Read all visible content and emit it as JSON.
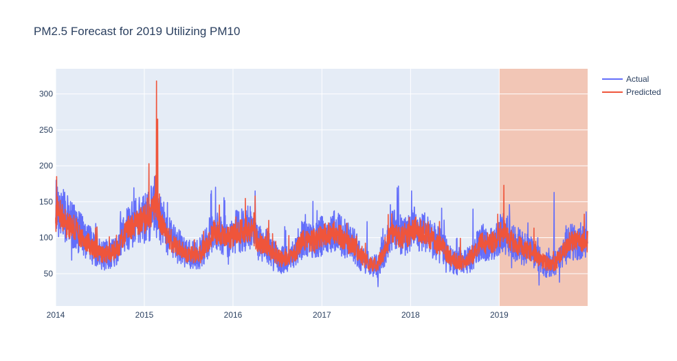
{
  "chart_data": {
    "type": "line",
    "title": "PM2.5 Forecast for 2019 Utilizing PM10",
    "xlabel": "",
    "ylabel": "",
    "x_range": [
      "2014-01-01",
      "2019-12-31"
    ],
    "ylim": [
      5,
      335
    ],
    "x_ticks": [
      "2014",
      "2015",
      "2016",
      "2017",
      "2018",
      "2019"
    ],
    "y_ticks": [
      50,
      100,
      150,
      200,
      250,
      300
    ],
    "grid": true,
    "legend_position": "top-right",
    "forecast_region": {
      "start": "2019-01-01",
      "end": "2019-12-31",
      "color": "#f2c6b6"
    },
    "x_monthly": [
      "2014-01",
      "2014-02",
      "2014-03",
      "2014-04",
      "2014-05",
      "2014-06",
      "2014-07",
      "2014-08",
      "2014-09",
      "2014-10",
      "2014-11",
      "2014-12",
      "2015-01",
      "2015-02",
      "2015-03",
      "2015-04",
      "2015-05",
      "2015-06",
      "2015-07",
      "2015-08",
      "2015-09",
      "2015-10",
      "2015-11",
      "2015-12",
      "2016-01",
      "2016-02",
      "2016-03",
      "2016-04",
      "2016-05",
      "2016-06",
      "2016-07",
      "2016-08",
      "2016-09",
      "2016-10",
      "2016-11",
      "2016-12",
      "2017-01",
      "2017-02",
      "2017-03",
      "2017-04",
      "2017-05",
      "2017-06",
      "2017-07",
      "2017-08",
      "2017-09",
      "2017-10",
      "2017-11",
      "2017-12",
      "2018-01",
      "2018-02",
      "2018-03",
      "2018-04",
      "2018-05",
      "2018-06",
      "2018-07",
      "2018-08",
      "2018-09",
      "2018-10",
      "2018-11",
      "2018-12",
      "2019-01",
      "2019-02",
      "2019-03",
      "2019-04",
      "2019-05",
      "2019-06",
      "2019-07",
      "2019-08",
      "2019-09",
      "2019-10",
      "2019-11",
      "2019-12"
    ],
    "series": [
      {
        "name": "Actual",
        "color": "#636efa",
        "values": [
          140,
          125,
          118,
          105,
          95,
          80,
          75,
          78,
          85,
          110,
          120,
          125,
          130,
          140,
          120,
          100,
          90,
          80,
          75,
          78,
          90,
          110,
          105,
          100,
          108,
          112,
          115,
          95,
          90,
          75,
          70,
          68,
          80,
          100,
          95,
          100,
          105,
          110,
          105,
          95,
          90,
          70,
          62,
          60,
          80,
          110,
          105,
          100,
          115,
          110,
          105,
          95,
          85,
          70,
          65,
          65,
          75,
          95,
          92,
          95,
          110,
          100,
          90,
          85,
          80,
          70,
          62,
          60,
          75,
          95,
          95,
          95
        ],
        "peaks": [
          [
            "2014-01-03",
            180
          ],
          [
            "2015-02-12",
            185
          ],
          [
            "2016-04-01",
            165
          ],
          [
            "2018-01-05",
            165
          ],
          [
            "2019-08-15",
            163
          ]
        ],
        "minimum": [
          "2017-08-20",
          32
        ]
      },
      {
        "name": "Predicted",
        "color": "#ef553b",
        "values": [
          138,
          122,
          115,
          103,
          93,
          80,
          76,
          78,
          86,
          108,
          118,
          122,
          128,
          145,
          118,
          98,
          88,
          80,
          76,
          78,
          90,
          108,
          103,
          100,
          106,
          110,
          112,
          93,
          88,
          75,
          71,
          70,
          80,
          98,
          95,
          100,
          104,
          108,
          103,
          93,
          88,
          72,
          64,
          62,
          80,
          108,
          103,
          100,
          113,
          108,
          103,
          93,
          85,
          72,
          66,
          66,
          76,
          93,
          92,
          95,
          108,
          98,
          90,
          85,
          80,
          70,
          64,
          62,
          76,
          93,
          94,
          95
        ],
        "peaks": [
          [
            "2014-01-05",
            185
          ],
          [
            "2015-01-20",
            203
          ],
          [
            "2015-02-20",
            318
          ],
          [
            "2015-02-25",
            265
          ],
          [
            "2016-04-01",
            158
          ],
          [
            "2019-01-20",
            173
          ]
        ],
        "minimum": [
          "2017-08-20",
          55
        ]
      }
    ]
  }
}
